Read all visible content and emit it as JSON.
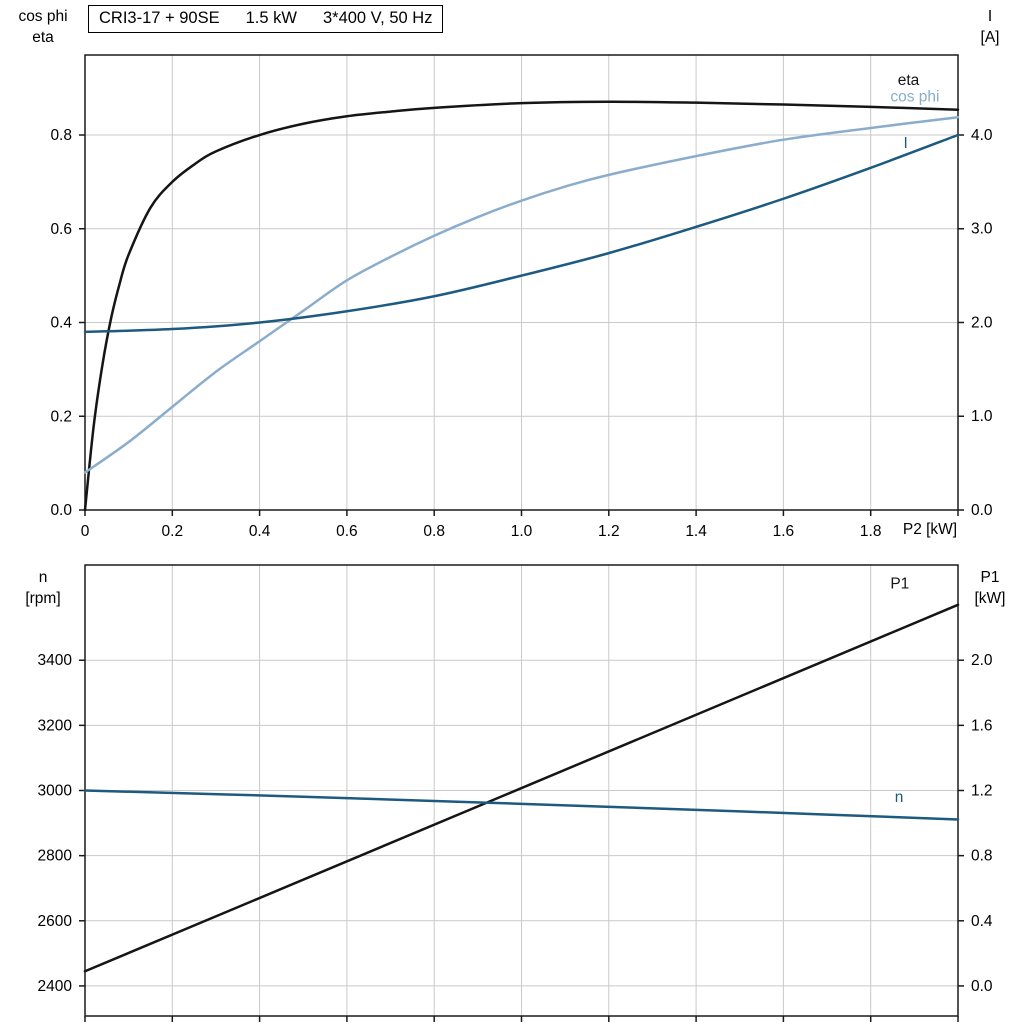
{
  "title_box": {
    "model": "CRI3-17 + 90SE",
    "power": "1.5 kW",
    "supply": "3*400 V, 50 Hz"
  },
  "colors": {
    "curve_black": "#151515",
    "curve_dark_blue": "#1d5a80",
    "curve_light_blue": "#8aadcd",
    "grid": "#c9c9c9",
    "axis": "#1a1a1a",
    "text": "#000000"
  },
  "chart_data": [
    {
      "id": "motor-electrical",
      "type": "line",
      "title": "CRI3-17 + 90SE   1.5 kW   3*400 V, 50 Hz",
      "x_axis": {
        "label": "P2 [kW]",
        "min": 0,
        "max": 2.0,
        "ticks": [
          0,
          0.2,
          0.4,
          0.6,
          0.8,
          1.0,
          1.2,
          1.4,
          1.6,
          1.8
        ],
        "tick_labels": [
          "0",
          "0.2",
          "0.4",
          "0.6",
          "0.8",
          "1.0",
          "1.2",
          "1.4",
          "1.6",
          "1.8"
        ]
      },
      "left_axis": {
        "label_lines": [
          "cos phi",
          "eta"
        ],
        "min": 0,
        "max": 0.9707,
        "ticks": [
          0.0,
          0.2,
          0.4,
          0.6,
          0.8
        ],
        "tick_labels": [
          "0.0",
          "0.2",
          "0.4",
          "0.6",
          "0.8"
        ]
      },
      "right_axis": {
        "label_lines": [
          "I",
          "[A]"
        ],
        "min": 0,
        "max": 4.8533,
        "ticks": [
          0.0,
          1.0,
          2.0,
          3.0,
          4.0
        ],
        "tick_labels": [
          "0.0",
          "1.0",
          "2.0",
          "3.0",
          "4.0"
        ]
      },
      "grid": true,
      "legend_position": "inline-labels",
      "series": [
        {
          "name": "eta",
          "axis": "left",
          "color_key": "curve_black",
          "label": "eta",
          "label_at": [
            1.862,
            0.907
          ],
          "x": [
            0,
            0.02,
            0.04,
            0.06,
            0.08,
            0.1,
            0.15,
            0.2,
            0.25,
            0.3,
            0.4,
            0.5,
            0.6,
            0.7,
            0.8,
            1.0,
            1.2,
            1.4,
            1.6,
            1.8,
            2.0
          ],
          "y": [
            0,
            0.18,
            0.31,
            0.41,
            0.485,
            0.545,
            0.645,
            0.7,
            0.737,
            0.765,
            0.8,
            0.824,
            0.84,
            0.85,
            0.858,
            0.868,
            0.871,
            0.869,
            0.865,
            0.86,
            0.854
          ]
        },
        {
          "name": "cos phi",
          "axis": "left",
          "color_key": "curve_light_blue",
          "label": "cos phi",
          "label_at": [
            1.845,
            0.872
          ],
          "x": [
            0,
            0.1,
            0.2,
            0.3,
            0.4,
            0.5,
            0.6,
            0.7,
            0.8,
            0.9,
            1.0,
            1.1,
            1.2,
            1.4,
            1.6,
            1.8,
            2.0
          ],
          "y": [
            0.08,
            0.145,
            0.22,
            0.295,
            0.36,
            0.425,
            0.49,
            0.54,
            0.585,
            0.625,
            0.66,
            0.69,
            0.715,
            0.755,
            0.79,
            0.815,
            0.838
          ]
        },
        {
          "name": "I",
          "axis": "right",
          "color_key": "curve_dark_blue",
          "label": "I",
          "label_at": [
            1.875,
            3.86
          ],
          "x": [
            0,
            0.2,
            0.4,
            0.6,
            0.8,
            1.0,
            1.2,
            1.4,
            1.6,
            1.8,
            2.0
          ],
          "y": [
            1.9,
            1.93,
            2.0,
            2.12,
            2.28,
            2.5,
            2.74,
            3.02,
            3.32,
            3.65,
            4.0
          ]
        }
      ]
    },
    {
      "id": "motor-mechanical",
      "type": "line",
      "x_axis": {
        "label": "",
        "min": 0,
        "max": 2.0,
        "ticks": [
          0,
          0.2,
          0.4,
          0.6,
          0.8,
          1.0,
          1.2,
          1.4,
          1.6,
          1.8
        ],
        "tick_labels": []
      },
      "left_axis": {
        "label_lines": [
          "n",
          "[rpm]"
        ],
        "min": 2307.7,
        "max": 3692.3,
        "ticks": [
          2400,
          2600,
          2800,
          3000,
          3200,
          3400
        ],
        "tick_labels": [
          "2400",
          "2600",
          "2800",
          "3000",
          "3200",
          "3400"
        ]
      },
      "right_axis": {
        "label_lines": [
          "P1",
          "[kW]"
        ],
        "min": -0.1846,
        "max": 2.5846,
        "ticks": [
          0.0,
          0.4,
          0.8,
          1.2,
          1.6,
          2.0
        ],
        "tick_labels": [
          "0.0",
          "0.4",
          "0.8",
          "1.2",
          "1.6",
          "2.0"
        ]
      },
      "grid": true,
      "legend_position": "inline-labels",
      "series": [
        {
          "name": "P1",
          "axis": "right",
          "color_key": "curve_black",
          "label": "P1",
          "label_at": [
            1.845,
            2.44
          ],
          "x": [
            0,
            2.0
          ],
          "y": [
            0.09,
            2.34
          ]
        },
        {
          "name": "n",
          "axis": "left",
          "color_key": "curve_dark_blue",
          "label": "n",
          "label_at": [
            1.855,
            2965
          ],
          "x": [
            0,
            0.5,
            1.0,
            1.5,
            2.0
          ],
          "y": [
            3000,
            2981,
            2959,
            2936,
            2911
          ]
        }
      ]
    }
  ]
}
